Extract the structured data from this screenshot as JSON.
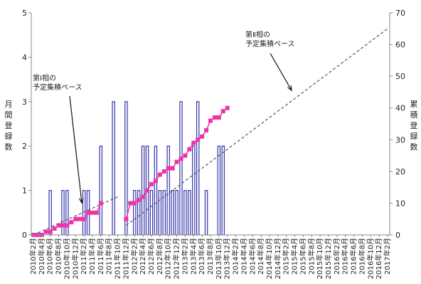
{
  "chart_data": {
    "type": "bar",
    "ylabel_left": "月間登録数",
    "ylabel_right": "累積登録数",
    "ylim_left": [
      0,
      5
    ],
    "yticks_left": [
      0,
      1,
      2,
      3,
      4,
      5
    ],
    "ylim_right": [
      0,
      70
    ],
    "yticks_right": [
      0,
      10,
      20,
      30,
      40,
      50,
      60,
      70
    ],
    "grid": false,
    "x_tick_labels": [
      "2010年2月",
      "2010年4月",
      "2010年6月",
      "2010年8月",
      "2010年10月",
      "2010年12月",
      "2011年2月",
      "2011年4月",
      "2011年6月",
      "2011年8月",
      "2011年10月",
      "2011年12月",
      "2012年2月",
      "2012年4月",
      "2012年6月",
      "2012年8月",
      "2012年10月",
      "2012年12月",
      "2013年2月",
      "2013年4月",
      "2013年6月",
      "2013年8月",
      "2013年10月",
      "2013年12月",
      "2014年2月",
      "2014年4月",
      "2014年6月",
      "2014年8月",
      "2014年10月",
      "2014年12月",
      "2015年2月",
      "2015年4月",
      "2015年6月",
      "2015年8月",
      "2015年10月",
      "2015年12月",
      "2016年2月",
      "2016年4月",
      "2016年6月",
      "2016年8月",
      "2016年10月",
      "2016年12月",
      "2017年2月"
    ],
    "monthly": [
      0,
      0,
      0,
      0,
      1,
      0,
      0,
      1,
      1,
      0,
      0,
      0,
      1,
      1,
      0,
      0,
      2,
      0,
      0,
      3
    ],
    "phase2_monthly": [
      3,
      0,
      1,
      1,
      2,
      2,
      1,
      2,
      1,
      1,
      2,
      1,
      1,
      3,
      1,
      1,
      2,
      3,
      0,
      1,
      0,
      0,
      2,
      2
    ],
    "cumulative": [
      0,
      0,
      0,
      1,
      1,
      2,
      3,
      3,
      3,
      4,
      5,
      5,
      5,
      7,
      7,
      7,
      10
    ],
    "phase2_cumulative": [
      5,
      10,
      10,
      11,
      12,
      14,
      16,
      17,
      19,
      20,
      21,
      21,
      23,
      24,
      25,
      27,
      29,
      30,
      31,
      33,
      36,
      37,
      37,
      39,
      40
    ],
    "annotations": [
      {
        "lines": [
          "第Ⅰ相の",
          "予定集積ペース"
        ]
      },
      {
        "lines": [
          "第Ⅱ相の",
          "予定集積ペース"
        ]
      }
    ],
    "colors": {
      "bar": "#3333aa",
      "bar_fill": "#ffffff",
      "line": "#ee33aa",
      "pace": "#555555"
    }
  }
}
